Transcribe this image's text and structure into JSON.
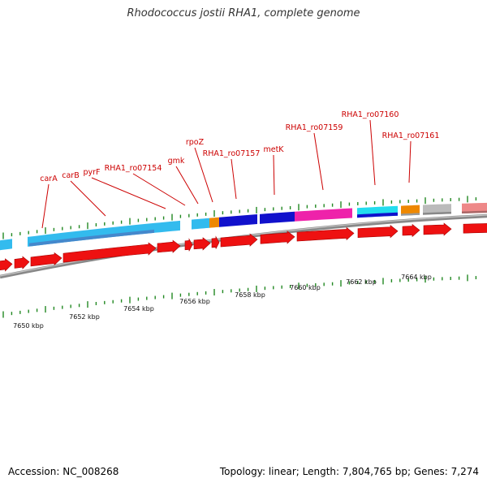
{
  "title": "Rhodococcus jostii RHA1, complete genome",
  "footer": {
    "accession": "Accession: NC_008268",
    "summary": "Topology: linear; Length: 7,804,765 bp; Genes: 7,274"
  },
  "gene_labels": [
    "carA",
    "carB",
    "pyrF",
    "RHA1_ro07154",
    "gmk",
    "rpoZ",
    "RHA1_ro07157",
    "metK",
    "RHA1_ro07159",
    "RHA1_ro07160",
    "RHA1_ro07161"
  ],
  "kbp_ticks": [
    "7650 kbp",
    "7652 kbp",
    "7654 kbp",
    "7656 kbp",
    "7658 kbp",
    "7660 kbp",
    "7662 kbp",
    "7664 kbp"
  ],
  "colors": {
    "cds_arrow": "#ee1111",
    "gene_light_blue": "#33bbee",
    "gene_mid_blue": "#4488cc",
    "gene_blue": "#1111cc",
    "gene_pink": "#ee22aa",
    "gene_cyan": "#22ddee",
    "gene_orange": "#ee8800",
    "gene_gray": "#bbbbbb",
    "gene_salmon": "#ee8888",
    "label_red": "#cc0000",
    "tick_green": "#228822",
    "backbone_gray": "#888888"
  }
}
